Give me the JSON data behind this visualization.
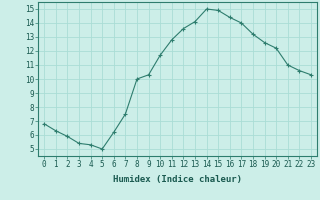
{
  "x": [
    0,
    1,
    2,
    3,
    4,
    5,
    6,
    7,
    8,
    9,
    10,
    11,
    12,
    13,
    14,
    15,
    16,
    17,
    18,
    19,
    20,
    21,
    22,
    23
  ],
  "y": [
    6.8,
    6.3,
    5.9,
    5.4,
    5.3,
    5.0,
    6.2,
    7.5,
    10.0,
    10.3,
    11.7,
    12.8,
    13.6,
    14.1,
    15.0,
    14.9,
    14.4,
    14.0,
    13.2,
    12.6,
    12.2,
    11.0,
    10.6,
    10.3
  ],
  "line_color": "#2e7d6e",
  "marker_color": "#2e7d6e",
  "bg_color": "#cceee8",
  "grid_color": "#aaddd5",
  "xlabel": "Humidex (Indice chaleur)",
  "ylim": [
    4.5,
    15.5
  ],
  "xlim": [
    -0.5,
    23.5
  ],
  "yticks": [
    5,
    6,
    7,
    8,
    9,
    10,
    11,
    12,
    13,
    14,
    15
  ],
  "xticks": [
    0,
    1,
    2,
    3,
    4,
    5,
    6,
    7,
    8,
    9,
    10,
    11,
    12,
    13,
    14,
    15,
    16,
    17,
    18,
    19,
    20,
    21,
    22,
    23
  ],
  "xtick_labels": [
    "0",
    "1",
    "2",
    "3",
    "4",
    "5",
    "6",
    "7",
    "8",
    "9",
    "10",
    "11",
    "12",
    "13",
    "14",
    "15",
    "16",
    "17",
    "18",
    "19",
    "20",
    "21",
    "22",
    "23"
  ],
  "label_fontsize": 6.5,
  "tick_fontsize": 5.5
}
